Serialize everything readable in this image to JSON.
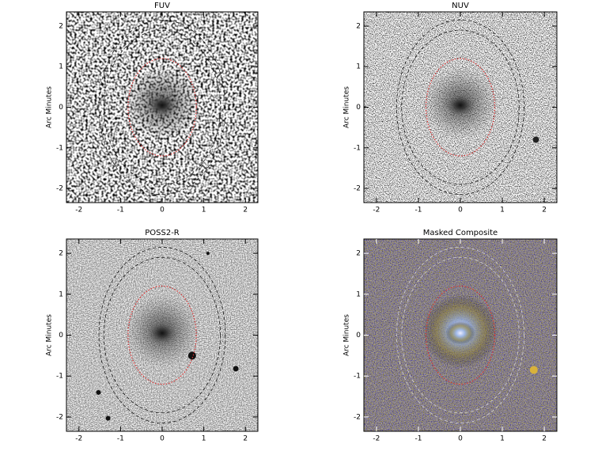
{
  "chart_data": [
    {
      "type": "image",
      "title": "FUV",
      "y_label": "Arc Minutes",
      "xlim": [
        -2.3,
        2.3
      ],
      "ylim": [
        -2.35,
        2.35
      ],
      "xticks": [
        -2,
        -1,
        0,
        1,
        2
      ],
      "yticks": [
        -2,
        -1,
        0,
        1,
        2
      ]
    },
    {
      "type": "image",
      "title": "NUV",
      "y_label": "Arc Minutes",
      "xlim": [
        -2.3,
        2.3
      ],
      "ylim": [
        -2.35,
        2.35
      ],
      "xticks": [
        -2,
        -1,
        0,
        1,
        2
      ],
      "yticks": [
        -2,
        -1,
        0,
        1,
        2
      ]
    },
    {
      "type": "image",
      "title": "POSS2-R",
      "y_label": "Arc Minutes",
      "xlim": [
        -2.3,
        2.3
      ],
      "ylim": [
        -2.35,
        2.35
      ],
      "xticks": [
        -2,
        -1,
        0,
        1,
        2
      ],
      "yticks": [
        -2,
        -1,
        0,
        1,
        2
      ]
    },
    {
      "type": "image",
      "title": "Masked Composite",
      "y_label": "Arc Minutes",
      "xlim": [
        -2.3,
        2.3
      ],
      "ylim": [
        -2.35,
        2.35
      ],
      "xticks": [
        -2,
        -1,
        0,
        1,
        2
      ],
      "yticks": [
        -2,
        -1,
        0,
        1,
        2
      ]
    }
  ]
}
